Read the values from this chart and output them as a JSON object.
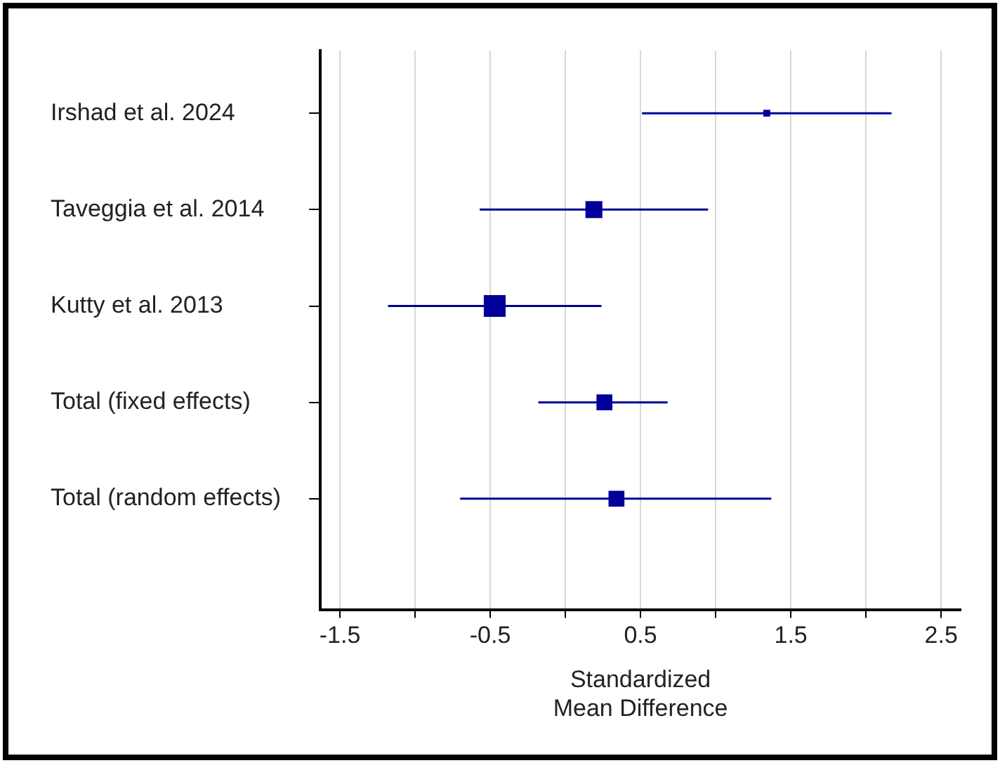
{
  "chart_data": {
    "type": "bubble",
    "orientation": "horizontal",
    "marker": "square",
    "grid": "x",
    "legend": false,
    "categories": [
      "Irshad et al. 2024",
      "Taveggia et al. 2014",
      "Kutty et al. 2013",
      "Total (fixed effects)",
      "Total (random effects)"
    ],
    "series": [
      {
        "color": "#000099",
        "values": [
          1.34,
          0.19,
          -0.47,
          0.26,
          0.34
        ],
        "sizes": [
          0.1,
          0.6,
          1,
          0.53,
          0.53
        ],
        "errors": [
          [
            0.51,
            2.17
          ],
          [
            -0.57,
            0.95
          ],
          [
            -1.18,
            0.24
          ],
          [
            -0.18,
            0.68
          ],
          [
            -0.7,
            1.37
          ]
        ]
      }
    ],
    "xlim": [
      -1.63,
      2.63
    ],
    "xticks": [
      -1.5,
      {
        "value": -1,
        "label": null
      },
      -0.5,
      {
        "value": 0,
        "label": null
      },
      0.5,
      {
        "value": 1,
        "label": null
      },
      1.5,
      {
        "value": 2,
        "label": null
      },
      2.5
    ],
    "xlabel": "Standardized\nMean Difference"
  }
}
